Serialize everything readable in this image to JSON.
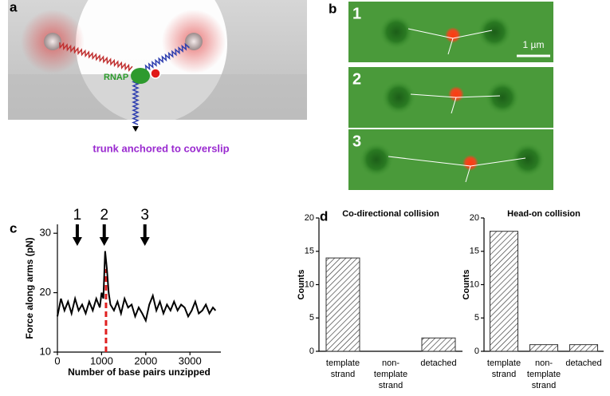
{
  "figure": {
    "panel_a": {
      "label": "a",
      "rnap_label": "RNAP",
      "caption": "trunk anchored to coverslip"
    },
    "panel_b": {
      "label": "b",
      "frames": [
        "1",
        "2",
        "3"
      ],
      "scale_bar": "1 µm"
    },
    "panel_c_label": "c",
    "panel_d_label": "d"
  },
  "chart_data": [
    {
      "type": "line",
      "xlabel": "Number of base pairs unzipped",
      "ylabel": "Force along arms (pN)",
      "x": [
        0,
        80,
        160,
        240,
        320,
        400,
        480,
        560,
        640,
        720,
        800,
        880,
        960,
        1000,
        1040,
        1080,
        1120,
        1160,
        1200,
        1280,
        1360,
        1440,
        1520,
        1600,
        1680,
        1760,
        1840,
        1920,
        2000,
        2080,
        2160,
        2240,
        2320,
        2400,
        2480,
        2560,
        2640,
        2720,
        2800,
        2880,
        2960,
        3040,
        3120,
        3200,
        3280,
        3360,
        3440,
        3520,
        3580
      ],
      "values": [
        16,
        19,
        17,
        18.5,
        16.5,
        19,
        17,
        18,
        16.5,
        18.5,
        17,
        19,
        17.5,
        20,
        19,
        27,
        24,
        20,
        18,
        17,
        18.5,
        16.5,
        19,
        17.5,
        18,
        16,
        17.5,
        16.5,
        15.3,
        18,
        19.5,
        17,
        18.5,
        16.5,
        18,
        17,
        18.5,
        17,
        18,
        17.5,
        16,
        17,
        18.5,
        16.5,
        17,
        18,
        16.5,
        17.5,
        17
      ],
      "color": "#000000",
      "xlim": [
        0,
        3700
      ],
      "ylim": [
        10,
        31.5
      ],
      "xticks": [
        0,
        1000,
        2000,
        3000
      ],
      "yticks": [
        10,
        20,
        30
      ],
      "annotations": [
        {
          "text": "1",
          "x": 450
        },
        {
          "text": "2",
          "x": 1060
        },
        {
          "text": "3",
          "x": 1980
        }
      ],
      "marker_line": {
        "x": 1100,
        "y": 24,
        "color": "#e02020"
      }
    },
    {
      "type": "bar",
      "title": "Co-directional collision",
      "ylabel": "Counts",
      "categories": [
        "template strand",
        "non-template strand",
        "detached"
      ],
      "values": [
        14,
        0,
        2
      ],
      "color": "#333333",
      "ylim": [
        0,
        20
      ],
      "yticks": [
        0,
        5,
        10,
        15,
        20
      ]
    },
    {
      "type": "bar",
      "title": "Head-on collision",
      "ylabel": "Counts",
      "categories": [
        "template strand",
        "non-template strand",
        "detached"
      ],
      "values": [
        18,
        1,
        1
      ],
      "color": "#333333",
      "ylim": [
        0,
        20
      ],
      "yticks": [
        0,
        5,
        10,
        15,
        20
      ]
    }
  ]
}
